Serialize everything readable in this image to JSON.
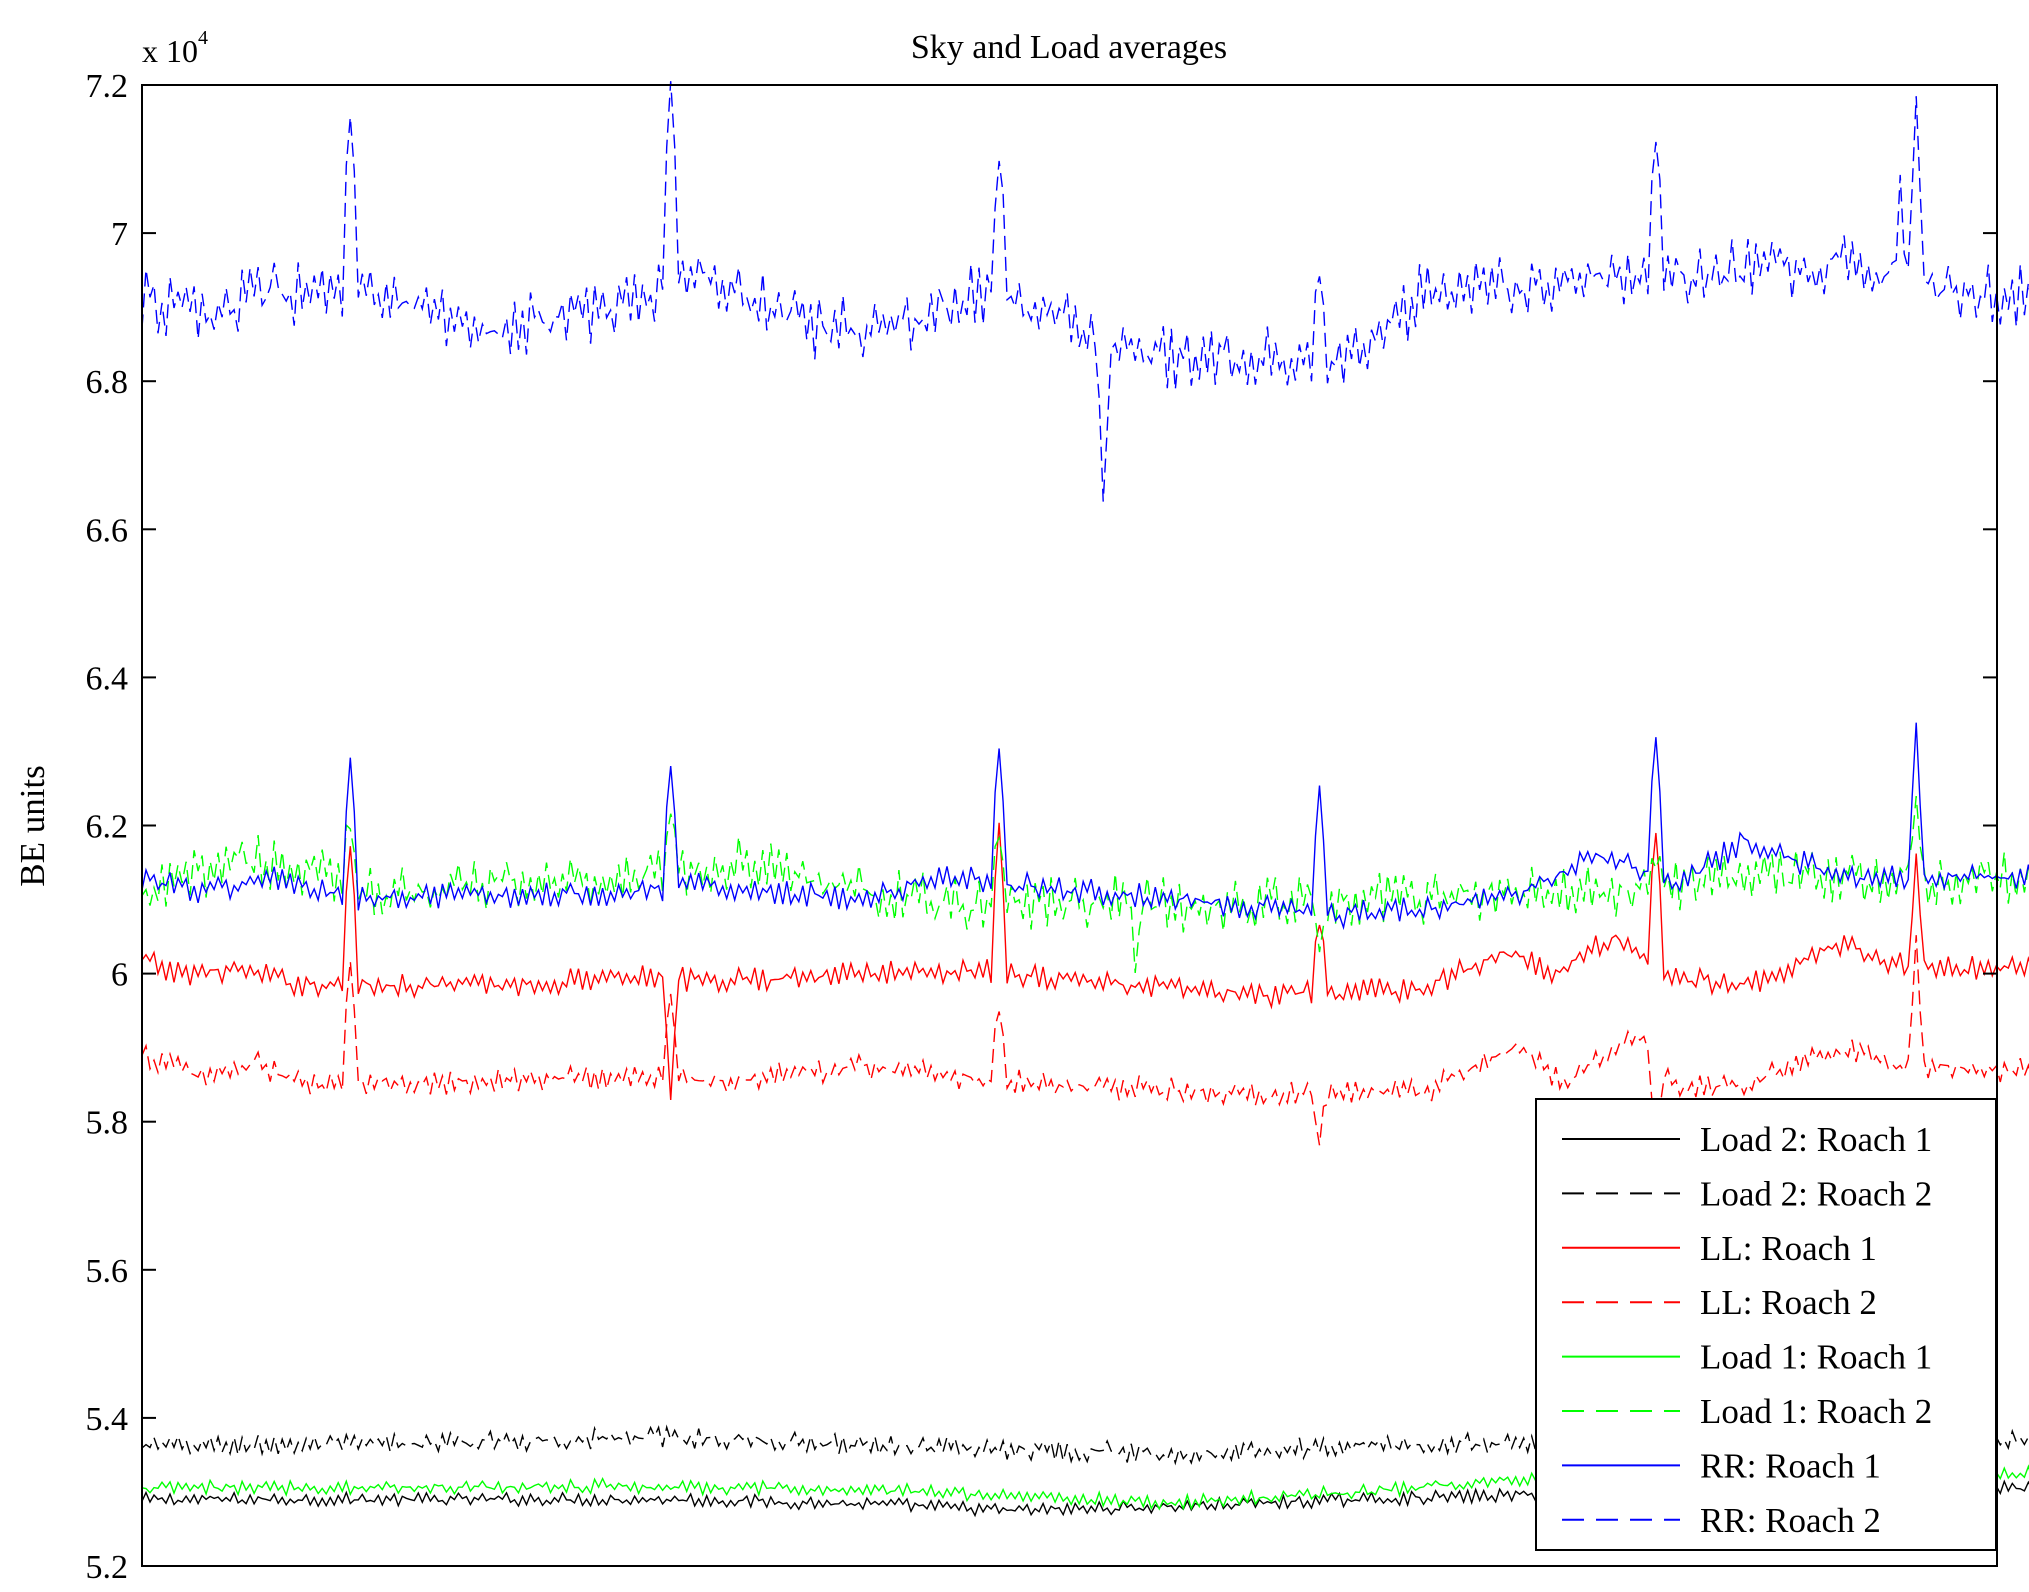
{
  "chart_data": {
    "type": "line",
    "title": "Sky and Load averages",
    "xlabel": "",
    "ylabel": "BE units",
    "y_multiplier": "x 10",
    "y_multiplier_exponent": "4",
    "ylim": [
      52000,
      72000
    ],
    "y_ticks": [
      52000,
      54000,
      56000,
      58000,
      60000,
      62000,
      64000,
      66000,
      68000,
      70000,
      72000
    ],
    "y_tick_labels": [
      "5.2",
      "5.4",
      "5.6",
      "5.8",
      "6",
      "6.2",
      "6.4",
      "6.6",
      "6.8",
      "7",
      "7.2"
    ],
    "xlim": [
      0,
      1000
    ],
    "x_ticks_shown": false,
    "grid": false,
    "legend_position": "bottom-right",
    "series": [
      {
        "name": "Load 2: Roach 1",
        "color": "#000000",
        "dash": "solid",
        "base": 52900,
        "noise": 110,
        "knots": [
          [
            0,
            0
          ],
          [
            330,
            0
          ],
          [
            480,
            -80
          ],
          [
            540,
            -150
          ],
          [
            640,
            -100
          ],
          [
            760,
            0
          ],
          [
            900,
            80
          ],
          [
            1000,
            150
          ]
        ],
        "spikes": []
      },
      {
        "name": "Load 2: Roach 2",
        "color": "#000000",
        "dash": "dashed",
        "base": 53620,
        "noise": 170,
        "knots": [
          [
            0,
            0
          ],
          [
            150,
            20
          ],
          [
            250,
            80
          ],
          [
            330,
            120
          ],
          [
            480,
            0
          ],
          [
            560,
            -50
          ],
          [
            640,
            -100
          ],
          [
            760,
            0
          ],
          [
            900,
            60
          ],
          [
            1000,
            80
          ]
        ],
        "spikes": []
      },
      {
        "name": "LL: Roach 1",
        "color": "#ff0000",
        "dash": "solid",
        "base": 60000,
        "noise": 200,
        "knots": [
          [
            0,
            200
          ],
          [
            20,
            0
          ],
          [
            60,
            50
          ],
          [
            100,
            -150
          ],
          [
            250,
            -150
          ],
          [
            300,
            0
          ],
          [
            350,
            -100
          ],
          [
            450,
            0
          ],
          [
            520,
            50
          ],
          [
            590,
            -100
          ],
          [
            700,
            -300
          ],
          [
            800,
            -200
          ],
          [
            850,
            300
          ],
          [
            880,
            0
          ],
          [
            920,
            500
          ],
          [
            960,
            -100
          ],
          [
            1010,
            -100
          ],
          [
            1060,
            400
          ],
          [
            1100,
            100
          ],
          [
            1180,
            50
          ],
          [
            1250,
            0
          ]
        ],
        "spikes": [
          [
            129,
            2000
          ],
          [
            330,
            -1600
          ],
          [
            535,
            2100
          ],
          [
            735,
            1000
          ],
          [
            944,
            1900
          ],
          [
            1108,
            1400
          ]
        ]
      },
      {
        "name": "LL: Roach 2",
        "color": "#ff0000",
        "dash": "dashed",
        "base": 58600,
        "noise": 210,
        "knots": [
          [
            0,
            300
          ],
          [
            40,
            0
          ],
          [
            70,
            200
          ],
          [
            100,
            -100
          ],
          [
            300,
            0
          ],
          [
            360,
            -50
          ],
          [
            450,
            150
          ],
          [
            520,
            0
          ],
          [
            580,
            -100
          ],
          [
            700,
            -250
          ],
          [
            800,
            -200
          ],
          [
            860,
            400
          ],
          [
            890,
            -100
          ],
          [
            930,
            600
          ],
          [
            960,
            -100
          ],
          [
            1000,
            -100
          ],
          [
            1060,
            400
          ],
          [
            1100,
            150
          ],
          [
            1180,
            100
          ],
          [
            1250,
            50
          ]
        ],
        "spikes": [
          [
            129,
            1700
          ],
          [
            330,
            1200
          ],
          [
            535,
            1000
          ],
          [
            735,
            -600
          ],
          [
            944,
            -1200
          ],
          [
            1108,
            1600
          ]
        ]
      },
      {
        "name": "Load 1: Roach 1",
        "color": "#00ff00",
        "dash": "solid",
        "base": 53000,
        "noise": 120,
        "knots": [
          [
            0,
            50
          ],
          [
            300,
            80
          ],
          [
            500,
            0
          ],
          [
            640,
            -150
          ],
          [
            760,
            0
          ],
          [
            900,
            250
          ],
          [
            1000,
            250
          ]
        ],
        "spikes": []
      },
      {
        "name": "Load 1: Roach 2",
        "color": "#00ff00",
        "dash": "dashed",
        "base": 61100,
        "noise": 440,
        "knots": [
          [
            0,
            -100
          ],
          [
            60,
            500
          ],
          [
            150,
            0
          ],
          [
            300,
            200
          ],
          [
            380,
            400
          ],
          [
            450,
            0
          ],
          [
            520,
            -200
          ],
          [
            600,
            -100
          ],
          [
            660,
            -200
          ],
          [
            760,
            -100
          ],
          [
            900,
            0
          ],
          [
            1000,
            200
          ],
          [
            1100,
            200
          ],
          [
            1250,
            200
          ]
        ],
        "spikes": [
          [
            129,
            900
          ],
          [
            330,
            900
          ],
          [
            535,
            1100
          ],
          [
            620,
            -800
          ],
          [
            735,
            -500
          ],
          [
            944,
            500
          ],
          [
            1108,
            1000
          ]
        ]
      },
      {
        "name": "RR: Roach 1",
        "color": "#0000ff",
        "dash": "solid",
        "base": 61000,
        "noise": 210,
        "knots": [
          [
            0,
            300
          ],
          [
            40,
            100
          ],
          [
            80,
            300
          ],
          [
            130,
            0
          ],
          [
            300,
            100
          ],
          [
            350,
            200
          ],
          [
            450,
            0
          ],
          [
            500,
            300
          ],
          [
            600,
            100
          ],
          [
            750,
            -200
          ],
          [
            850,
            0
          ],
          [
            910,
            600
          ],
          [
            960,
            200
          ],
          [
            1000,
            800
          ],
          [
            1060,
            300
          ],
          [
            1150,
            300
          ],
          [
            1250,
            300
          ]
        ],
        "spikes": [
          [
            129,
            1900
          ],
          [
            330,
            1700
          ],
          [
            535,
            1900
          ],
          [
            735,
            1800
          ],
          [
            944,
            2000
          ],
          [
            1108,
            2000
          ]
        ]
      },
      {
        "name": "RR: Roach 2",
        "color": "#0000ff",
        "dash": "dashed",
        "base": 68900,
        "noise": 520,
        "knots": [
          [
            0,
            200
          ],
          [
            40,
            0
          ],
          [
            80,
            300
          ],
          [
            150,
            200
          ],
          [
            220,
            -200
          ],
          [
            300,
            100
          ],
          [
            350,
            600
          ],
          [
            420,
            -200
          ],
          [
            480,
            -100
          ],
          [
            520,
            300
          ],
          [
            580,
            -100
          ],
          [
            600,
            -500
          ],
          [
            650,
            -600
          ],
          [
            700,
            -500
          ],
          [
            760,
            -600
          ],
          [
            800,
            300
          ],
          [
            900,
            500
          ],
          [
            1000,
            600
          ],
          [
            1060,
            700
          ],
          [
            1130,
            300
          ],
          [
            1250,
            200
          ]
        ],
        "spikes": [
          [
            129,
            2700
          ],
          [
            330,
            2900
          ],
          [
            535,
            2100
          ],
          [
            600,
            -1800
          ],
          [
            735,
            1300
          ],
          [
            944,
            2100
          ],
          [
            1098,
            1100
          ],
          [
            1108,
            2200
          ]
        ]
      }
    ]
  }
}
